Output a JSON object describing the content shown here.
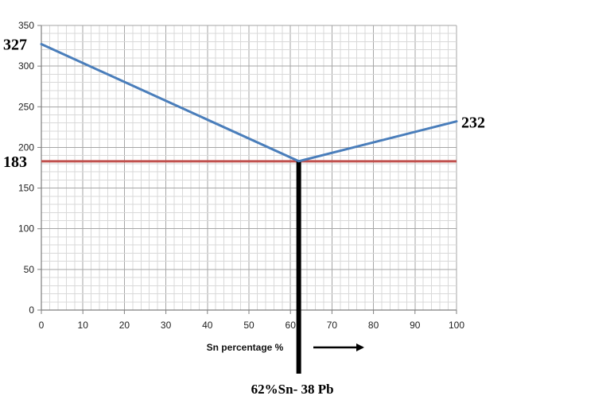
{
  "chart_data": {
    "type": "line",
    "title": "",
    "xlabel": "Sn percentage %",
    "ylabel": "",
    "xlim": [
      0,
      100
    ],
    "ylim": [
      0,
      350
    ],
    "x_ticks": [
      0,
      10,
      20,
      30,
      40,
      50,
      60,
      70,
      80,
      90,
      100
    ],
    "y_ticks": [
      0,
      50,
      100,
      150,
      200,
      250,
      300,
      350
    ],
    "x_tick_labels": [
      "0",
      "10",
      "20",
      "30",
      "40",
      "50",
      "60",
      "70",
      "80",
      "90",
      "100"
    ],
    "y_tick_labels": [
      "0",
      "50",
      "100",
      "150",
      "200",
      "250",
      "300",
      "350"
    ],
    "grid": true,
    "legend": "none",
    "series": [
      {
        "color": "#4a7ebb",
        "points": [
          [
            0,
            327
          ],
          [
            62,
            183
          ],
          [
            100,
            232
          ]
        ]
      }
    ],
    "reference_lines": [
      {
        "orientation": "horizontal",
        "value": 183,
        "color": "#c0504d"
      },
      {
        "orientation": "vertical",
        "value": 62,
        "color": "#000000"
      }
    ],
    "annotations": [
      {
        "text": "327",
        "x": 0,
        "y": 327,
        "anchor": "left-outside"
      },
      {
        "text": "232",
        "x": 100,
        "y": 232,
        "anchor": "right-outside"
      },
      {
        "text": "183",
        "x": 0,
        "y": 183,
        "anchor": "left-outside"
      },
      {
        "text": "62%Sn- 38 Pb",
        "x": 62,
        "anchor": "below-axis"
      }
    ],
    "arrow_direction": "right"
  }
}
